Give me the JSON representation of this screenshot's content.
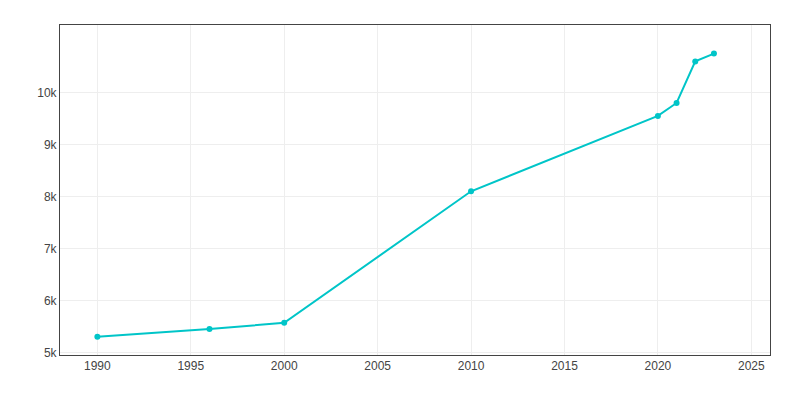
{
  "chart_data": {
    "type": "line",
    "x": [
      1990,
      1996,
      2000,
      2010,
      2020,
      2021,
      2022,
      2023
    ],
    "values": [
      5300,
      5450,
      5570,
      8100,
      9550,
      9800,
      10600,
      10750
    ],
    "color": "#00C5C8",
    "marker": "circle",
    "line_style": "solid",
    "xlim": [
      1988,
      2026
    ],
    "ylim": [
      4950,
      11300
    ],
    "xticks": [
      1990,
      1995,
      2000,
      2005,
      2010,
      2015,
      2020,
      2025
    ],
    "yticks": [
      {
        "value": 5000,
        "label": "5k"
      },
      {
        "value": 6000,
        "label": "6k"
      },
      {
        "value": 7000,
        "label": "7k"
      },
      {
        "value": 8000,
        "label": "8k"
      },
      {
        "value": 9000,
        "label": "9k"
      },
      {
        "value": 10000,
        "label": "10k"
      }
    ],
    "grid": true
  }
}
